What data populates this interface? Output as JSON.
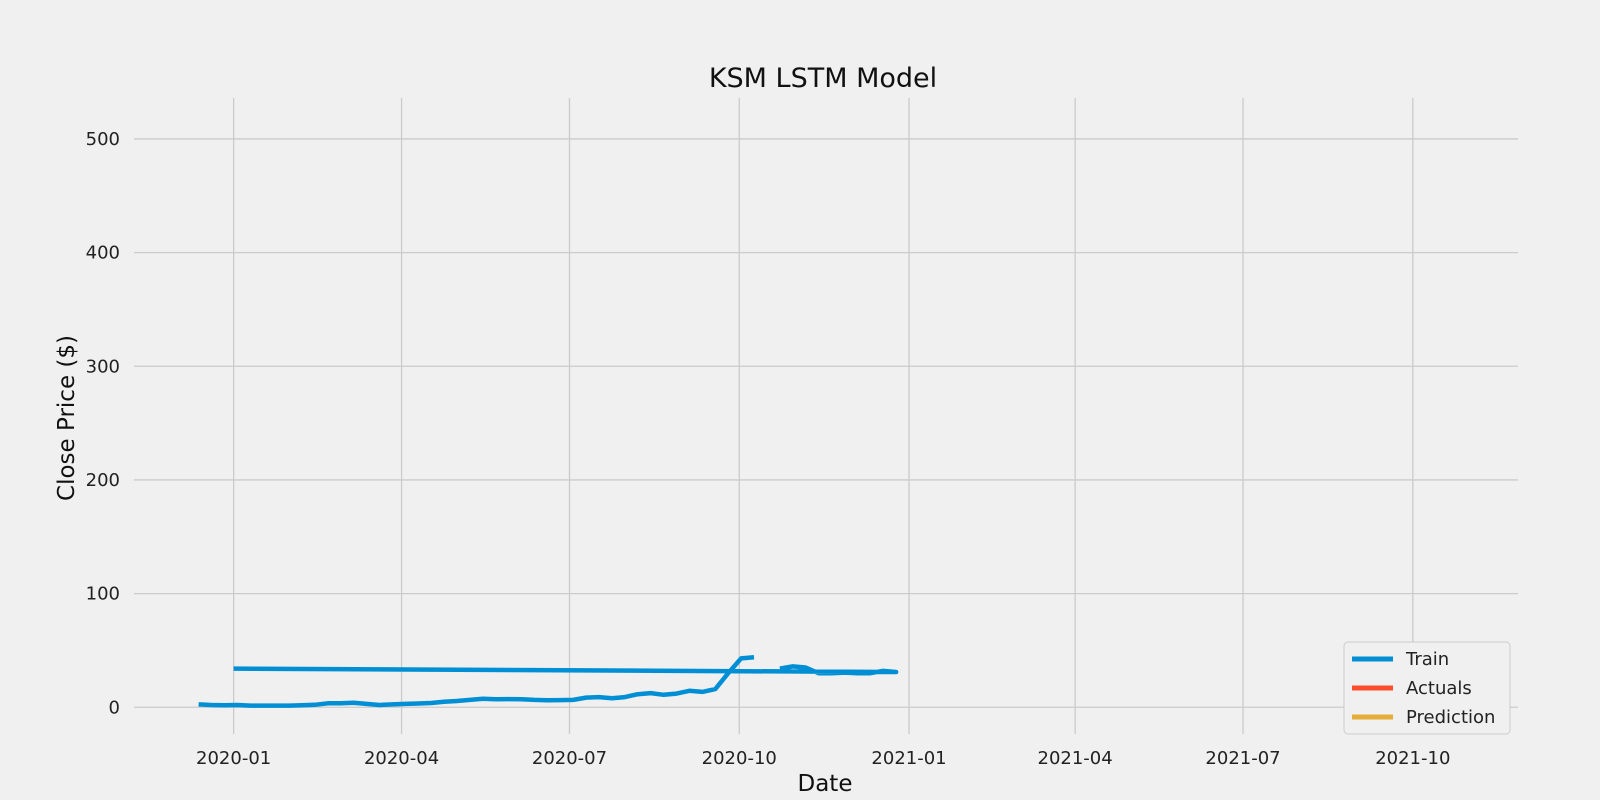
{
  "chart_data": {
    "type": "line",
    "title": "KSM LSTM Model",
    "xlabel": "Date",
    "ylabel": "Close Price ($)",
    "xlim": [
      "2019-11-08",
      "2021-11-27"
    ],
    "ylim": [
      -23.5,
      536
    ],
    "x_ticks": [
      "2020-01",
      "2020-04",
      "2020-07",
      "2020-10",
      "2021-01",
      "2021-04",
      "2021-07",
      "2021-10"
    ],
    "y_ticks": [
      0,
      100,
      200,
      300,
      400,
      500
    ],
    "grid": true,
    "legend": {
      "position": "lower-right",
      "entries": [
        "Train",
        "Actuals",
        "Prediction"
      ]
    },
    "colors": {
      "Train": "#008fd5",
      "Actuals": "#fc4f30",
      "Prediction": "#e5ae38",
      "background": "#f0f0f0",
      "grid": "#cbcbcb"
    },
    "series": [
      {
        "name": "Train",
        "segments": [
          [
            [
              "2019-12-13",
              2.5
            ],
            [
              "2019-12-20",
              2.0
            ],
            [
              "2019-12-27",
              1.8
            ],
            [
              "2020-01-03",
              2.0
            ],
            [
              "2020-01-10",
              1.5
            ],
            [
              "2020-01-17",
              1.5
            ],
            [
              "2020-01-24",
              1.5
            ],
            [
              "2020-01-31",
              1.5
            ],
            [
              "2020-02-07",
              1.8
            ],
            [
              "2020-02-14",
              2.2
            ],
            [
              "2020-02-21",
              3.5
            ],
            [
              "2020-02-28",
              3.5
            ],
            [
              "2020-03-06",
              4.0
            ],
            [
              "2020-03-13",
              3.0
            ],
            [
              "2020-03-20",
              2.0
            ],
            [
              "2020-03-27",
              2.5
            ],
            [
              "2020-04-03",
              3.0
            ],
            [
              "2020-04-10",
              3.3
            ],
            [
              "2020-04-17",
              3.8
            ],
            [
              "2020-04-24",
              4.8
            ],
            [
              "2020-05-01",
              5.5
            ],
            [
              "2020-05-08",
              6.5
            ],
            [
              "2020-05-15",
              7.5
            ],
            [
              "2020-05-22",
              7.0
            ],
            [
              "2020-05-29",
              7.2
            ],
            [
              "2020-06-05",
              7.0
            ],
            [
              "2020-06-12",
              6.5
            ],
            [
              "2020-06-19",
              6.2
            ],
            [
              "2020-06-26",
              6.3
            ],
            [
              "2020-07-03",
              6.5
            ],
            [
              "2020-07-10",
              8.5
            ],
            [
              "2020-07-17",
              9.0
            ],
            [
              "2020-07-24",
              8.0
            ],
            [
              "2020-07-31",
              9.0
            ],
            [
              "2020-08-07",
              11.5
            ],
            [
              "2020-08-14",
              12.5
            ],
            [
              "2020-08-21",
              11.0
            ],
            [
              "2020-08-28",
              12.0
            ],
            [
              "2020-09-04",
              14.5
            ],
            [
              "2020-09-11",
              13.5
            ],
            [
              "2020-09-18",
              16.0
            ],
            [
              "2020-09-25",
              30.0
            ],
            [
              "2020-10-02",
              43.0
            ],
            [
              "2020-10-09",
              44.0
            ]
          ],
          [
            [
              "2020-10-23",
              34.0
            ],
            [
              "2020-10-30",
              36.0
            ],
            [
              "2020-11-06",
              35.0
            ],
            [
              "2020-11-13",
              30.0
            ],
            [
              "2020-11-20",
              30.0
            ],
            [
              "2020-11-27",
              30.5
            ],
            [
              "2020-12-04",
              30.0
            ],
            [
              "2020-12-11",
              30.0
            ],
            [
              "2020-12-18",
              32.0
            ],
            [
              "2020-12-25",
              31.0
            ],
            [
              "2020-01-01",
              34.0
            ]
          ]
        ]
      },
      {
        "name": "Actuals",
        "segments": []
      },
      {
        "name": "Prediction",
        "segments": []
      }
    ]
  }
}
